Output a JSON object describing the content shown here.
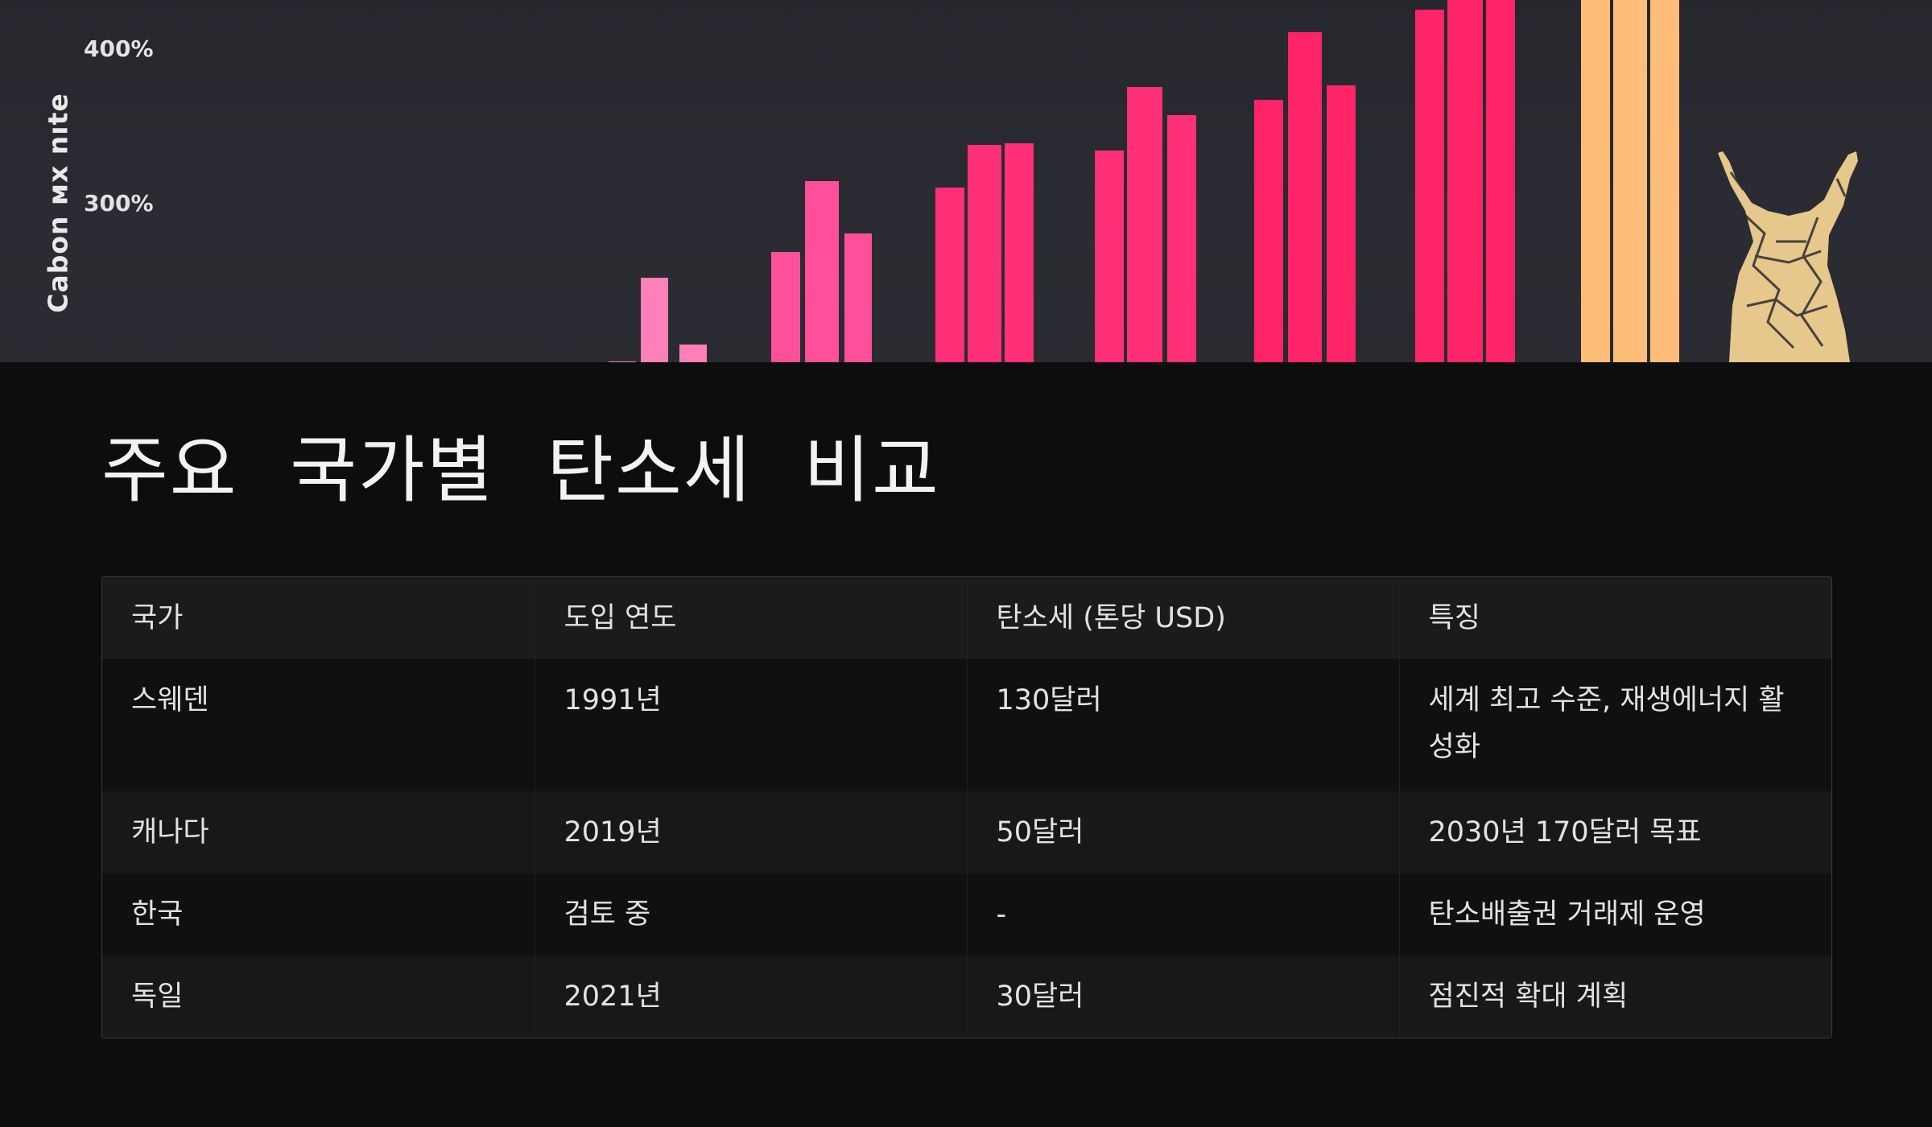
{
  "hero": {
    "y_axis_title": "Cabon ᴍx nıte",
    "y_ticks": [
      "400%",
      "300%"
    ],
    "colors": {
      "background": "#2a2b31",
      "bar_light_pink": "#ff7fb8",
      "bar_pink": "#ff4f9a",
      "bar_hot_pink": "#ff2f78",
      "bar_red_pink": "#ff2468",
      "bar_peach": "#ffbd7a",
      "figure_gold": "#e6c78c"
    },
    "figure_icon": "celebrating-person-icon"
  },
  "title": "주요 국가별 탄소세 비교",
  "table": {
    "headers": [
      "국가",
      "도입 연도",
      "탄소세 (톤당 USD)",
      "특징"
    ],
    "rows": [
      [
        "스웨덴",
        "1991년",
        "130달러",
        "세계 최고 수준, 재생에너지 활성화"
      ],
      [
        "캐나다",
        "2019년",
        "50달러",
        "2030년 170달러 목표"
      ],
      [
        "한국",
        "검토 중",
        "-",
        "탄소배출권 거래제 운영"
      ],
      [
        "독일",
        "2021년",
        "30달러",
        "점진적 확대 계획"
      ]
    ]
  }
}
